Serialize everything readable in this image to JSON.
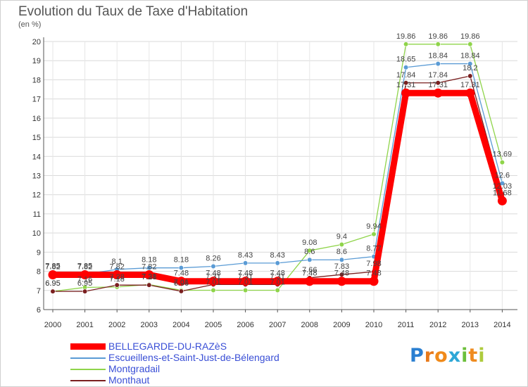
{
  "title": "Evolution du Taux de Taxe d'Habitation",
  "subtitle": "(en %)",
  "logo": {
    "text": "Proxiti",
    "letter_colors": [
      "#2a7fd1",
      "#e77a1c",
      "#f08a1a",
      "#2ea7d6",
      "#6cbf3b",
      "#ef8b1f",
      "#aecb3d"
    ]
  },
  "chart_data": {
    "type": "line",
    "x": [
      "2000",
      "2001",
      "2002",
      "2003",
      "2004",
      "2005",
      "2006",
      "2007",
      "2008",
      "2009",
      "2010",
      "2011",
      "2012",
      "2013",
      "2014"
    ],
    "ylim": [
      6,
      20
    ],
    "yticks": [
      6,
      7,
      8,
      9,
      10,
      11,
      12,
      13,
      14,
      15,
      16,
      17,
      18,
      19,
      20
    ],
    "grid": true,
    "series": [
      {
        "name": "BELLEGARDE-DU-RAZèS",
        "color": "#ff0000",
        "values": [
          7.82,
          7.82,
          7.82,
          7.82,
          7.48,
          7.48,
          7.48,
          7.48,
          7.48,
          7.48,
          7.48,
          17.31,
          17.31,
          17.31,
          11.68
        ],
        "labels": [
          "7.82",
          "7.82",
          "7.82",
          "7.82",
          "7.48",
          "7.48",
          "7.48",
          "7.48",
          "7.48",
          "7.48",
          "7.48",
          "17.31",
          "17.31",
          "17.31",
          "11.68"
        ]
      },
      {
        "name": "Escueillens-et-Saint-Just-de-Bélengard",
        "color": "#5a9bd5",
        "values": [
          7.85,
          7.85,
          8.1,
          8.18,
          8.18,
          8.26,
          8.43,
          8.43,
          8.6,
          8.6,
          8.77,
          18.65,
          18.84,
          18.84,
          12.6
        ],
        "labels": [
          "7.85",
          "7.85",
          "8.1",
          "8.18",
          "8.18",
          "8.26",
          "8.43",
          "8.43",
          "8.6",
          "8.6",
          "8.77",
          "18.65",
          "18.84",
          "18.84",
          "12.6"
        ]
      },
      {
        "name": "Montgradail",
        "color": "#8fd44a",
        "values": [
          6.95,
          7.16,
          7.18,
          7.31,
          7.01,
          7.01,
          7.01,
          7.01,
          9.08,
          9.4,
          9.94,
          19.86,
          19.86,
          19.86,
          13.69
        ],
        "labels": [
          "6.95",
          "7.16",
          "7.18",
          "7.31",
          "7.01",
          "7.01",
          "7.01",
          "7.01",
          "9.08",
          "9.4",
          "9.94",
          "19.86",
          "19.86",
          "19.86",
          "13.69"
        ]
      },
      {
        "name": "Monthaut",
        "color": "#7a1f1f",
        "values": [
          6.95,
          6.95,
          7.28,
          7.28,
          6.96,
          7.31,
          7.31,
          7.31,
          7.66,
          7.83,
          7.98,
          17.84,
          17.84,
          18.2,
          12.03
        ],
        "labels": [
          "6.95",
          "6.95",
          "7.28",
          "7.28",
          "6.96",
          "7.31",
          "7.31",
          "7.31",
          "7.66",
          "7.83",
          "7.98",
          "17.84",
          "17.84",
          "18.2",
          "12.03"
        ]
      }
    ]
  }
}
